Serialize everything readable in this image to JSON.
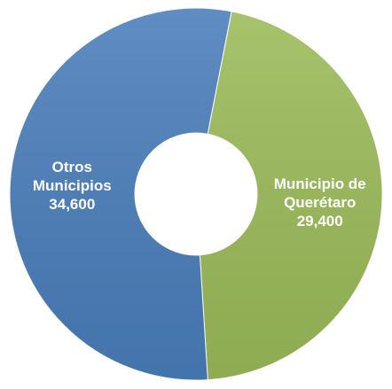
{
  "chart_data": {
    "type": "donut",
    "categories": [
      "Municipio de Querétaro",
      "Otros Municipios"
    ],
    "values": [
      29400,
      34600
    ],
    "value_labels": [
      "29,400",
      "34,600"
    ],
    "colors": [
      "#9bbb59",
      "#4a7ebb"
    ]
  }
}
